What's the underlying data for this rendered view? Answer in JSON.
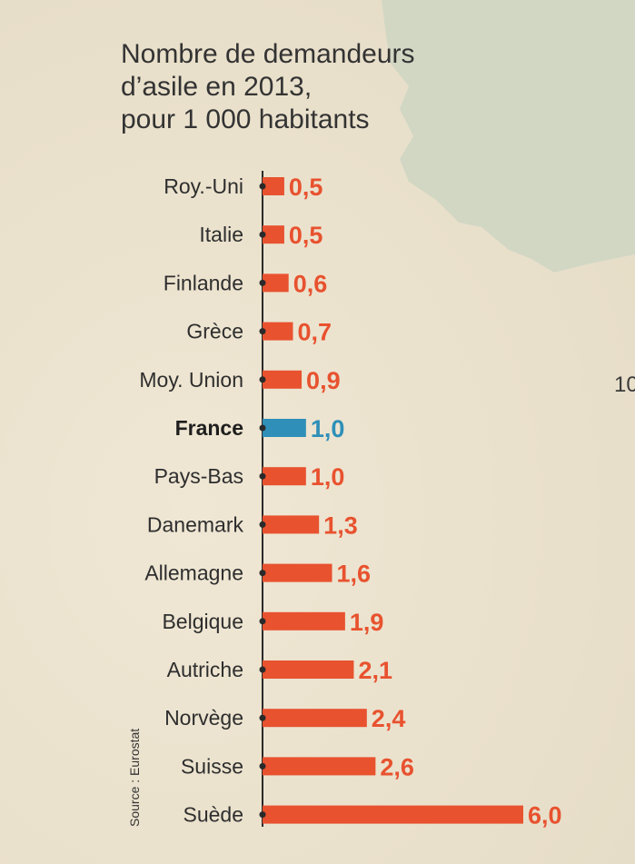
{
  "title_lines": [
    "Nombre de demandeurs",
    "d’asile en 2013,",
    "pour 1 000 habitants"
  ],
  "source": "Source : Eurostat",
  "side_number": "10",
  "colors": {
    "bar": "#e8522f",
    "highlight": "#2f8fb8",
    "axis": "#2a2a2a",
    "map": "#d2d7c4"
  },
  "chart_data": {
    "type": "bar",
    "orientation": "horizontal",
    "title": "Nombre de demandeurs d’asile en 2013, pour 1 000 habitants",
    "categories": [
      "Roy.-Uni",
      "Italie",
      "Finlande",
      "Grèce",
      "Moy. Union",
      "France",
      "Pays-Bas",
      "Danemark",
      "Allemagne",
      "Belgique",
      "Autriche",
      "Norvège",
      "Suisse",
      "Suède"
    ],
    "values": [
      0.5,
      0.5,
      0.6,
      0.7,
      0.9,
      1.0,
      1.0,
      1.3,
      1.6,
      1.9,
      2.1,
      2.4,
      2.6,
      6.0
    ],
    "value_labels": [
      "0,5",
      "0,5",
      "0,6",
      "0,7",
      "0,9",
      "1,0",
      "1,0",
      "1,3",
      "1,6",
      "1,9",
      "2,1",
      "2,4",
      "2,6",
      "6,0"
    ],
    "highlight": "France",
    "xlim": [
      0,
      6
    ],
    "grid": false
  }
}
